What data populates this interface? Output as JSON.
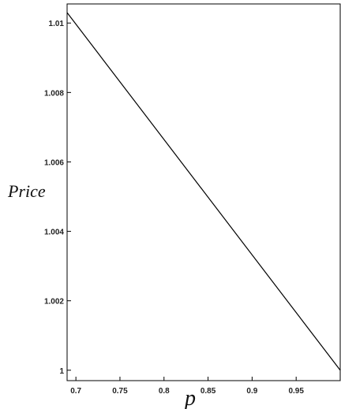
{
  "chart_data": {
    "type": "line",
    "xlabel": "p",
    "ylabel": "Price",
    "xlim": [
      0.69,
      1.0
    ],
    "ylim": [
      0.9997,
      1.01055
    ],
    "x_ticks": [
      0.7,
      0.75,
      0.8,
      0.85,
      0.9,
      0.95
    ],
    "x_tick_labels": [
      "0.7",
      "0.75",
      "0.8",
      "0.85",
      "0.9",
      "0.95"
    ],
    "y_ticks": [
      1.0,
      1.002,
      1.004,
      1.006,
      1.008,
      1.01
    ],
    "y_tick_labels": [
      "1",
      "1.002",
      "1.004",
      "1.006",
      "1.008",
      "1.01"
    ],
    "grid": false,
    "series": [
      {
        "x": [
          0.69,
          1.0
        ],
        "y": [
          1.0103,
          1.0
        ]
      }
    ]
  }
}
